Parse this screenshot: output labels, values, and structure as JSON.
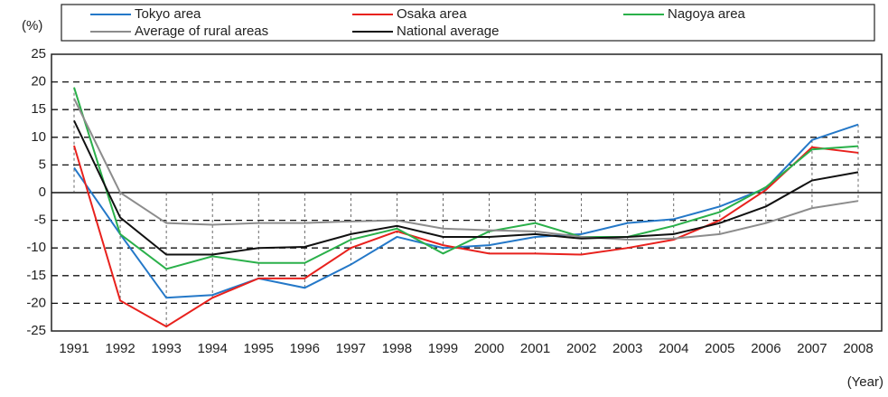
{
  "chart_data": {
    "type": "line",
    "y_unit": "(%)",
    "x_unit": "(Year)",
    "categories": [
      "1991",
      "1992",
      "1993",
      "1994",
      "1995",
      "1996",
      "1997",
      "1998",
      "1999",
      "2000",
      "2001",
      "2002",
      "2003",
      "2004",
      "2005",
      "2006",
      "2007",
      "2008"
    ],
    "series": [
      {
        "name": "Tokyo area",
        "color": "#2478c8",
        "values": [
          4.5,
          -7.5,
          -19,
          -18.5,
          -15.5,
          -17.2,
          -13,
          -8,
          -10,
          -9.5,
          -8,
          -7.5,
          -5.5,
          -4.8,
          -2.5,
          0.8,
          9.5,
          12.3
        ]
      },
      {
        "name": "Osaka area",
        "color": "#e8211d",
        "values": [
          8.5,
          -19.5,
          -24.2,
          -19,
          -15.5,
          -15.5,
          -10,
          -7,
          -9.5,
          -11,
          -11,
          -11.2,
          -10,
          -8.5,
          -5,
          0.5,
          8.2,
          7.2
        ]
      },
      {
        "name": "Nagoya area",
        "color": "#2ab04a",
        "values": [
          19,
          -7.5,
          -13.8,
          -11.5,
          -12.7,
          -12.7,
          -8.5,
          -6.5,
          -11,
          -7,
          -5.5,
          -8,
          -8,
          -6,
          -3.5,
          1,
          7.8,
          8.4
        ]
      },
      {
        "name": "Average of rural areas",
        "color": "#8c8c8c",
        "values": [
          17,
          0,
          -5.5,
          -5.8,
          -5.5,
          -5.5,
          -5.2,
          -5,
          -6.5,
          -6.8,
          -7,
          -8,
          -8.5,
          -8.3,
          -7.5,
          -5.5,
          -2.8,
          -1.5
        ]
      },
      {
        "name": "National average",
        "color": "#111111",
        "values": [
          13,
          -4.5,
          -11.2,
          -11.2,
          -10,
          -9.8,
          -7.5,
          -6,
          -8,
          -8,
          -7.5,
          -8.3,
          -8,
          -7.5,
          -5.5,
          -2.5,
          2.2,
          3.7
        ]
      }
    ],
    "ylim": [
      -25,
      25
    ],
    "yticks": [
      -25,
      -20,
      -15,
      -10,
      -5,
      0,
      5,
      10,
      15,
      20,
      25
    ],
    "grid": true
  }
}
